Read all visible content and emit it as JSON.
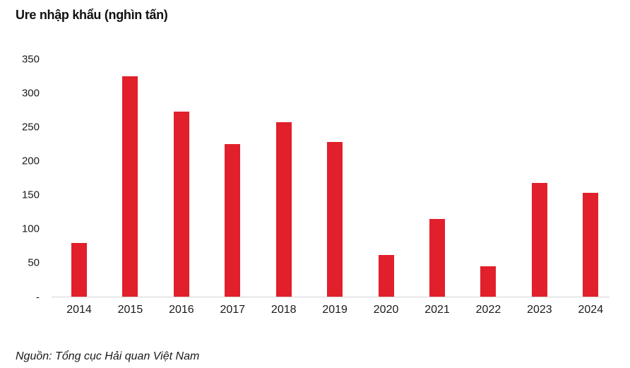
{
  "chart": {
    "bar_color": "#E1202B",
    "axis_line_color": "#D4D4D4",
    "text_color": "#1A1A1A"
  },
  "chart_data": {
    "type": "bar",
    "title": "Ure nhập khẩu (nghìn tấn)",
    "source": "Nguồn: Tổng cục Hải quan Việt Nam",
    "categories": [
      "2014",
      "2015",
      "2016",
      "2017",
      "2018",
      "2019",
      "2020",
      "2021",
      "2022",
      "2023",
      "2024"
    ],
    "values": [
      80,
      325,
      273,
      225,
      257,
      228,
      62,
      115,
      45,
      168,
      153
    ],
    "xlabel": "",
    "ylabel": "Ure nhập khẩu (nghìn tấn)",
    "ylim": [
      0,
      350
    ],
    "ytick_interval": 50,
    "ytick_labels": [
      "-",
      "50",
      "100",
      "150",
      "200",
      "250",
      "300",
      "350"
    ],
    "grid": "off",
    "legend": "none",
    "bar_color": "#E1202B"
  }
}
